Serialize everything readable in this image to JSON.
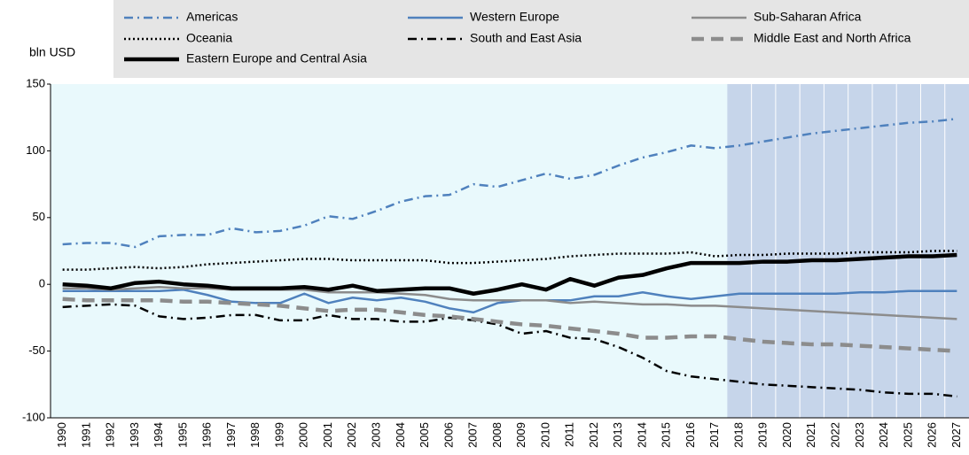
{
  "chart_data": {
    "type": "line",
    "y_label": "bln USD",
    "categories": [
      "1990",
      "1991",
      "1992",
      "1993",
      "1994",
      "1995",
      "1996",
      "1997",
      "1998",
      "1999",
      "2000",
      "2001",
      "2002",
      "2003",
      "2004",
      "2005",
      "2006",
      "2007",
      "2008",
      "2009",
      "2010",
      "2011",
      "2012",
      "2013",
      "2014",
      "2015",
      "2016",
      "2017",
      "2018",
      "2019",
      "2020",
      "2021",
      "2022",
      "2023",
      "2024",
      "2025",
      "2026",
      "2027"
    ],
    "projection_start": "2018",
    "ylim": [
      -100,
      150
    ],
    "yticks": [
      -100,
      -50,
      0,
      50,
      100,
      150
    ],
    "series": [
      {
        "name": "Americas",
        "color": "#4f81bd",
        "dash": "10 5 2 5",
        "width": 2.5,
        "values": [
          30,
          31,
          31,
          28,
          36,
          37,
          37,
          42,
          39,
          40,
          44,
          51,
          49,
          55,
          62,
          66,
          67,
          75,
          73,
          78,
          83,
          79,
          82,
          89,
          95,
          99,
          104,
          102,
          104,
          107,
          110,
          113,
          115,
          117,
          119,
          121,
          122,
          124
        ]
      },
      {
        "name": "Western Europe",
        "color": "#4f81bd",
        "dash": "",
        "width": 2.5,
        "values": [
          -5,
          -5,
          -5,
          -5,
          -5,
          -4,
          -8,
          -13,
          -14,
          -14,
          -7,
          -14,
          -10,
          -12,
          -10,
          -13,
          -18,
          -21,
          -14,
          -12,
          -12,
          -12,
          -9,
          -9,
          -6,
          -9,
          -11,
          -9,
          -7,
          -7,
          -7,
          -7,
          -7,
          -6,
          -6,
          -5,
          -5,
          -5
        ]
      },
      {
        "name": "Sub-Saharan Africa",
        "color": "#8c8c8c",
        "dash": "",
        "width": 2.5,
        "values": [
          -3,
          -3,
          -4,
          -3,
          -2,
          -3,
          -3,
          -4,
          -4,
          -4,
          -4,
          -6,
          -6,
          -6,
          -7,
          -8,
          -11,
          -12,
          -12,
          -12,
          -12,
          -14,
          -13,
          -14,
          -15,
          -15,
          -16,
          -16,
          -17,
          -18,
          -19,
          -20,
          -21,
          -22,
          -23,
          -24,
          -25,
          -26
        ]
      },
      {
        "name": "Oceania",
        "color": "#000000",
        "dash": "2 3",
        "width": 2.5,
        "values": [
          11,
          11,
          12,
          13,
          12,
          13,
          15,
          16,
          17,
          18,
          19,
          19,
          18,
          18,
          18,
          18,
          16,
          16,
          17,
          18,
          19,
          21,
          22,
          23,
          23,
          23,
          24,
          21,
          22,
          22,
          23,
          23,
          23,
          24,
          24,
          24,
          25,
          25
        ]
      },
      {
        "name": "South and East Asia",
        "color": "#000000",
        "dash": "10 5 2 5",
        "width": 2.5,
        "values": [
          -17,
          -16,
          -15,
          -16,
          -24,
          -26,
          -25,
          -23,
          -23,
          -27,
          -27,
          -23,
          -26,
          -26,
          -28,
          -28,
          -25,
          -27,
          -30,
          -37,
          -35,
          -40,
          -41,
          -47,
          -55,
          -65,
          -69,
          -71,
          -73,
          -75,
          -76,
          -77,
          -78,
          -79,
          -81,
          -82,
          -82,
          -84
        ]
      },
      {
        "name": "Middle East and North Africa",
        "color": "#8c8c8c",
        "dash": "14 8",
        "width": 4.5,
        "values": [
          -11,
          -12,
          -12,
          -12,
          -12,
          -13,
          -13,
          -14,
          -15,
          -16,
          -18,
          -20,
          -19,
          -19,
          -21,
          -23,
          -24,
          -26,
          -28,
          -30,
          -31,
          -33,
          -35,
          -37,
          -40,
          -40,
          -39,
          -39,
          -41,
          -43,
          -44,
          -45,
          -45,
          -46,
          -47,
          -48,
          -49,
          -50
        ]
      },
      {
        "name": "Eastern Europe and Central Asia",
        "color": "#000000",
        "dash": "",
        "width": 4.5,
        "values": [
          0,
          -1,
          -3,
          1,
          2,
          0,
          -1,
          -3,
          -3,
          -3,
          -2,
          -4,
          -1,
          -5,
          -4,
          -3,
          -3,
          -7,
          -4,
          0,
          -4,
          4,
          -1,
          5,
          7,
          12,
          16,
          16,
          16,
          17,
          17,
          18,
          18,
          19,
          20,
          21,
          21,
          22
        ]
      }
    ]
  }
}
